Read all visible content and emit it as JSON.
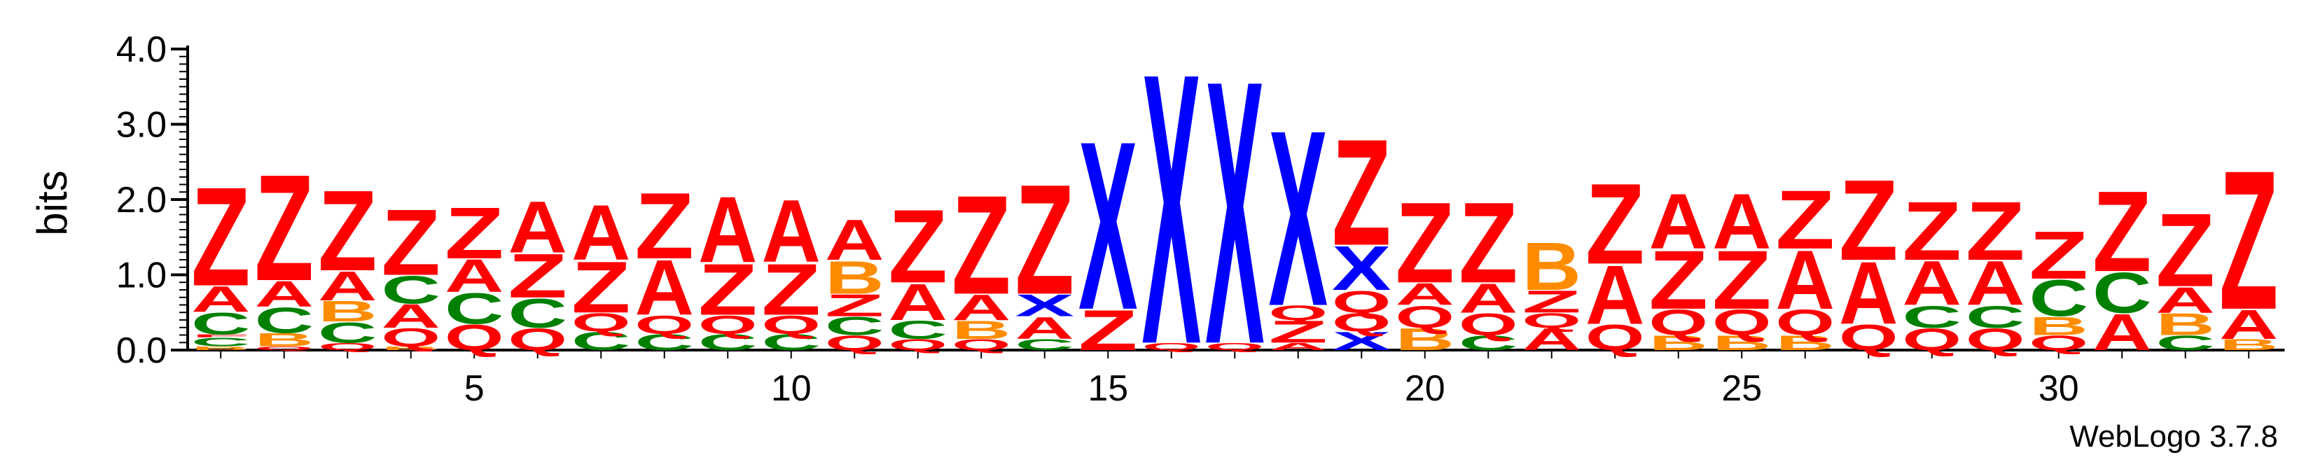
{
  "chart_data": {
    "type": "sequence-logo",
    "ylabel": "bits",
    "ylim": [
      0,
      4.0
    ],
    "y_ticks": [
      "0.0",
      "1.0",
      "2.0",
      "3.0",
      "4.0"
    ],
    "x_tick_labels": [
      "5",
      "10",
      "15",
      "20",
      "25",
      "30"
    ],
    "x_tick_positions": [
      5,
      10,
      15,
      20,
      25,
      30
    ],
    "n_positions": 33,
    "colors": {
      "Z": "#ff0000",
      "A": "#ff0000",
      "Q": "#ff0000",
      "X": "#0000ff",
      "C": "#008000",
      "B": "#ff8c00"
    },
    "positions": [
      [
        [
          "B",
          0.05
        ],
        [
          "C",
          0.12
        ],
        [
          "F",
          0.04
        ],
        [
          "C",
          0.3
        ],
        [
          "A",
          0.35
        ],
        [
          "Z",
          1.35
        ]
      ],
      [
        [
          "Q",
          0.05
        ],
        [
          "B",
          0.18
        ],
        [
          "C",
          0.35
        ],
        [
          "A",
          0.35
        ],
        [
          "Z",
          1.45
        ]
      ],
      [
        [
          "Q",
          0.1
        ],
        [
          "C",
          0.28
        ],
        [
          "B",
          0.28
        ],
        [
          "A",
          0.4
        ],
        [
          "Z",
          1.1
        ]
      ],
      [
        [
          "B",
          0.05
        ],
        [
          "Q",
          0.25
        ],
        [
          "A",
          0.32
        ],
        [
          "C",
          0.38
        ],
        [
          "Z",
          0.9
        ]
      ],
      [
        [
          "Q",
          0.35
        ],
        [
          "C",
          0.42
        ],
        [
          "A",
          0.45
        ],
        [
          "Z",
          0.7
        ]
      ],
      [
        [
          "Q",
          0.3
        ],
        [
          "C",
          0.4
        ],
        [
          "Z",
          0.6
        ],
        [
          "A",
          0.7
        ]
      ],
      [
        [
          "C",
          0.25
        ],
        [
          "Q",
          0.25
        ],
        [
          "Z",
          0.7
        ],
        [
          "A",
          0.75
        ]
      ],
      [
        [
          "C",
          0.22
        ],
        [
          "Q",
          0.25
        ],
        [
          "A",
          0.75
        ],
        [
          "Z",
          0.9
        ]
      ],
      [
        [
          "C",
          0.22
        ],
        [
          "Q",
          0.25
        ],
        [
          "Z",
          0.7
        ],
        [
          "A",
          0.9
        ]
      ],
      [
        [
          "C",
          0.22
        ],
        [
          "Q",
          0.25
        ],
        [
          "Z",
          0.7
        ],
        [
          "A",
          0.85
        ]
      ],
      [
        [
          "Q",
          0.2
        ],
        [
          "C",
          0.25
        ],
        [
          "Z",
          0.3
        ],
        [
          "B",
          0.45
        ],
        [
          "A",
          0.55
        ]
      ],
      [
        [
          "Q",
          0.15
        ],
        [
          "C",
          0.25
        ],
        [
          "A",
          0.5
        ],
        [
          "Z",
          1.0
        ]
      ],
      [
        [
          "Q",
          0.15
        ],
        [
          "B",
          0.25
        ],
        [
          "A",
          0.35
        ],
        [
          "Z",
          1.35
        ]
      ],
      [
        [
          "C",
          0.15
        ],
        [
          "A",
          0.3
        ],
        [
          "X",
          0.3
        ],
        [
          "Z",
          1.5
        ]
      ],
      [
        [
          "Z",
          0.55
        ],
        [
          "X",
          2.3
        ]
      ],
      [
        [
          "Q",
          0.1
        ],
        [
          "X",
          3.7
        ]
      ],
      [
        [
          "Q",
          0.1
        ],
        [
          "X",
          3.6
        ]
      ],
      [
        [
          "A",
          0.1
        ],
        [
          "Z",
          0.3
        ],
        [
          "Q",
          0.2
        ],
        [
          "X",
          2.4
        ]
      ],
      [
        [
          "X",
          0.25
        ],
        [
          "Q",
          0.25
        ],
        [
          "Q",
          0.3
        ],
        [
          "X",
          0.6
        ],
        [
          "Z",
          1.45
        ]
      ],
      [
        [
          "B",
          0.3
        ],
        [
          "Q",
          0.3
        ],
        [
          "A",
          0.3
        ],
        [
          "Z",
          1.1
        ]
      ],
      [
        [
          "C",
          0.2
        ],
        [
          "Q",
          0.3
        ],
        [
          "A",
          0.4
        ],
        [
          "Z",
          1.1
        ]
      ],
      [
        [
          "A",
          0.3
        ],
        [
          "Q",
          0.2
        ],
        [
          "Z",
          0.3
        ],
        [
          "B",
          0.65
        ]
      ],
      [
        [
          "Q",
          0.35
        ],
        [
          "A",
          0.8
        ],
        [
          "Z",
          1.1
        ]
      ],
      [
        [
          "B",
          0.2
        ],
        [
          "Q",
          0.35
        ],
        [
          "Z",
          0.8
        ],
        [
          "A",
          0.75
        ]
      ],
      [
        [
          "B",
          0.2
        ],
        [
          "Q",
          0.35
        ],
        [
          "Z",
          0.8
        ],
        [
          "A",
          0.75
        ]
      ],
      [
        [
          "B",
          0.2
        ],
        [
          "Q",
          0.35
        ],
        [
          "A",
          0.8
        ],
        [
          "Z",
          0.8
        ]
      ],
      [
        [
          "Q",
          0.35
        ],
        [
          "A",
          0.85
        ],
        [
          "Z",
          1.1
        ]
      ],
      [
        [
          "Q",
          0.3
        ],
        [
          "C",
          0.3
        ],
        [
          "A",
          0.6
        ],
        [
          "Z",
          0.8
        ]
      ],
      [
        [
          "Q",
          0.3
        ],
        [
          "C",
          0.3
        ],
        [
          "A",
          0.6
        ],
        [
          "Z",
          0.8
        ]
      ],
      [
        [
          "Q",
          0.2
        ],
        [
          "B",
          0.25
        ],
        [
          "C",
          0.5
        ],
        [
          "Z",
          0.65
        ]
      ],
      [
        [
          "A",
          0.5
        ],
        [
          "C",
          0.55
        ],
        [
          "Z",
          1.1
        ]
      ],
      [
        [
          "C",
          0.2
        ],
        [
          "B",
          0.3
        ],
        [
          "A",
          0.35
        ],
        [
          "Z",
          1.0
        ]
      ],
      [
        [
          "B",
          0.15
        ],
        [
          "A",
          0.4
        ],
        [
          "Z",
          1.9
        ]
      ]
    ]
  },
  "footer": {
    "credit": "WebLogo 3.7.8"
  }
}
